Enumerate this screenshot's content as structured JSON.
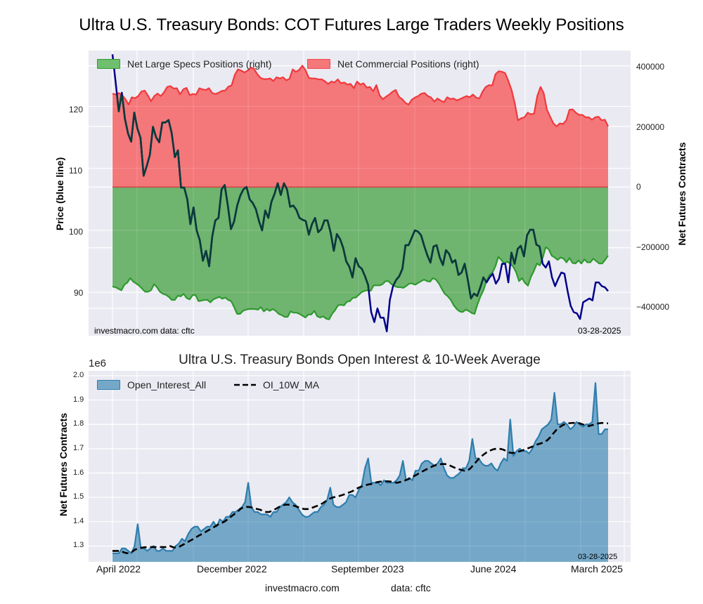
{
  "page": {
    "title": "Ultra U.S. Treasury Bonds: COT Futures Large Traders Weekly Positions",
    "footer_site": "investmacro.com",
    "footer_source": "data: cftc"
  },
  "chart_data": [
    {
      "type": "area",
      "title": "Ultra U.S. Treasury Bonds: COT Futures Large Traders Weekly Positions",
      "ylabel_left": "Price (blue line)",
      "ylabel_right": "Net Futures Contracts",
      "left_yticks": [
        "90",
        "100",
        "110",
        "120"
      ],
      "left_ytick_values": [
        90,
        100,
        110,
        120
      ],
      "right_yticks": [
        "400000",
        "200000",
        "0",
        "−200000",
        "−400000"
      ],
      "right_ytick_values": [
        400000,
        200000,
        0,
        -200000,
        -400000
      ],
      "left_ylim": [
        83,
        129
      ],
      "right_ylim": [
        -490000,
        450000
      ],
      "grid": true,
      "legend": {
        "position": "top-left",
        "entries": [
          "Net Large Specs Positions (right)",
          "Net Commercial Positions (right)"
        ]
      },
      "annotation_left": "investmacro.com    data: cftc",
      "annotation_right": "03-28-2025",
      "x_start": "2022-03",
      "x_end": "2025-03-28",
      "series": [
        {
          "name": "Net Commercial Positions (right)",
          "color": "#f0474a",
          "values": [
            308000,
            305000,
            310000,
            303000,
            290000,
            272000,
            296000,
            293000,
            300000,
            315000,
            318000,
            302000,
            283000,
            300000,
            308000,
            300000,
            312000,
            330000,
            333000,
            325000,
            326000,
            306000,
            322000,
            327000,
            303000,
            307000,
            305000,
            326000,
            322000,
            320000,
            326000,
            310000,
            307000,
            311000,
            317000,
            318000,
            331000,
            335000,
            370000,
            388000,
            384000,
            378000,
            384000,
            394000,
            390000,
            372000,
            360000,
            356000,
            356000,
            358000,
            350000,
            362000,
            358000,
            362000,
            352000,
            357000,
            388000,
            380000,
            386000,
            400000,
            385000,
            360000,
            358000,
            358000,
            355000,
            355000,
            349000,
            340000,
            348000,
            345000,
            355000,
            342000,
            345000,
            338000,
            340000,
            326000,
            348000,
            338000,
            342000,
            328000,
            330000,
            316000,
            336000,
            302000,
            290000,
            298000,
            305000,
            314000,
            320000,
            298000,
            290000,
            278000,
            272000,
            288000,
            295000,
            300000,
            308000,
            310000,
            300000,
            295000,
            282000,
            292000,
            285000,
            280000,
            296000,
            290000,
            292000,
            286000,
            290000,
            295000,
            300000,
            296000,
            305000,
            295000,
            292000,
            315000,
            330000,
            336000,
            335000,
            372000,
            382000,
            380000,
            376000,
            350000,
            320000,
            277000,
            220000,
            227000,
            230000,
            245000,
            240000,
            242000,
            300000,
            330000,
            310000,
            255000,
            232000,
            210000,
            200000,
            210000,
            208000,
            220000,
            255000,
            256000,
            245000,
            238000,
            238000,
            230000,
            230000,
            222000,
            230000,
            232000,
            220000,
            222000,
            200000
          ],
          "fill_to_zero": true
        },
        {
          "name": "Net Large Specs Positions (right)",
          "color": "#2e9a2e",
          "values": [
            -328000,
            -330000,
            -335000,
            -340000,
            -322000,
            -315000,
            -300000,
            -312000,
            -318000,
            -325000,
            -335000,
            -345000,
            -345000,
            -340000,
            -320000,
            -330000,
            -345000,
            -352000,
            -355000,
            -362000,
            -372000,
            -372000,
            -358000,
            -360000,
            -352000,
            -366000,
            -370000,
            -356000,
            -356000,
            -376000,
            -374000,
            -372000,
            -372000,
            -380000,
            -370000,
            -366000,
            -362000,
            -368000,
            -364000,
            -372000,
            -376000,
            -396000,
            -418000,
            -418000,
            -408000,
            -404000,
            -402000,
            -402000,
            -402000,
            -404000,
            -396000,
            -410000,
            -402000,
            -408000,
            -402000,
            -408000,
            -418000,
            -422000,
            -428000,
            -428000,
            -410000,
            -414000,
            -414000,
            -418000,
            -424000,
            -430000,
            -420000,
            -420000,
            -408000,
            -426000,
            -430000,
            -426000,
            -434000,
            -436000,
            -418000,
            -406000,
            -390000,
            -388000,
            -390000,
            -378000,
            -376000,
            -365000,
            -364000,
            -355000,
            -346000,
            -342000,
            -340000,
            -342000,
            -324000,
            -324000,
            -324000,
            -320000,
            -310000,
            -310000,
            -320000,
            -326000,
            -330000,
            -330000,
            -332000,
            -326000,
            -318000,
            -318000,
            -322000,
            -316000,
            -310000,
            -305000,
            -310000,
            -312000,
            -300000,
            -305000,
            -318000,
            -336000,
            -352000,
            -360000,
            -372000,
            -390000,
            -402000,
            -410000,
            -412000,
            -404000,
            -408000,
            -415000,
            -418000,
            -386000,
            -360000,
            -340000,
            -310000,
            -290000,
            -282000,
            -262000,
            -230000,
            -240000,
            -252000,
            -246000,
            -252000,
            -262000,
            -280000,
            -310000,
            -300000,
            -316000,
            -325000,
            -296000,
            -276000,
            -252000,
            -258000,
            -232000,
            -198000,
            -205000,
            -226000,
            -232000,
            -240000,
            -232000,
            -236000,
            -248000,
            -234000,
            -250000,
            -252000,
            -242000,
            -252000,
            -238000,
            -248000,
            -248000,
            -236000,
            -244000,
            -252000,
            -252000,
            -240000,
            -226000
          ],
          "fill_to_zero": true
        },
        {
          "name": "Price (blue line)",
          "color": "#00008b",
          "axis": "left",
          "values": [
            128.4,
            124.0,
            119.2,
            122.2,
            118.0,
            115.6,
            114.3,
            119.0,
            116.4,
            114.9,
            108.8,
            110.4,
            112.2,
            116.7,
            115.0,
            114.2,
            117.4,
            117.4,
            117.8,
            115.7,
            111.8,
            112.9,
            106.9,
            106.9,
            105.0,
            101.0,
            103.7,
            100.0,
            98.4,
            95.1,
            96.7,
            94.2,
            99.0,
            101.6,
            102.0,
            106.6,
            107.3,
            104.0,
            100.2,
            101.4,
            104.0,
            105.6,
            106.6,
            107.0,
            105.0,
            104.4,
            103.4,
            101.5,
            100.0,
            103.2,
            102.0,
            104.6,
            105.9,
            107.6,
            105.7,
            107.6,
            106.6,
            103.8,
            104.0,
            103.3,
            102.0,
            101.7,
            101.5,
            99.3,
            101.0,
            102.0,
            99.7,
            100.2,
            101.6,
            101.6,
            99.6,
            96.7,
            99.4,
            98.6,
            97.2,
            95.0,
            94.1,
            92.4,
            95.5,
            94.2,
            93.8,
            92.6,
            91.2,
            86.8,
            85.2,
            87.4,
            85.9,
            85.9,
            83.7,
            88.8,
            91.0,
            92.0,
            92.6,
            93.8,
            97.6,
            97.6,
            98.8,
            100.0,
            99.8,
            99.2,
            97.5,
            96.0,
            94.8,
            97.4,
            97.6,
            95.6,
            94.4,
            96.8,
            96.2,
            94.8,
            95.2,
            92.8,
            93.2,
            94.6,
            92.0,
            89.0,
            89.8,
            89.4,
            90.8,
            92.4,
            91.6,
            92.4,
            93.0,
            91.4,
            92.2,
            94.6,
            94.6,
            91.6,
            96.4,
            94.6,
            97.0,
            97.5,
            95.8,
            99.2,
            100.1,
            100.1,
            97.7,
            97.4,
            94.6,
            94.0,
            95.0,
            92.4,
            91.0,
            92.2,
            93.2,
            93.0,
            90.2,
            87.8,
            86.8,
            86.6,
            85.7,
            88.4,
            88.7,
            89.0,
            88.7,
            91.6,
            91.6,
            91.0,
            90.8,
            90.2
          ]
        }
      ]
    },
    {
      "type": "area",
      "title": "Ultra U.S. Treasury Bonds Open Interest & 10-Week Average",
      "ylabel": "Net Futures Contracts",
      "offset_text": "1e6",
      "yticks": [
        "1.3",
        "1.4",
        "1.5",
        "1.6",
        "1.7",
        "1.8",
        "1.9",
        "2.0"
      ],
      "ytick_values": [
        1.3,
        1.4,
        1.5,
        1.6,
        1.7,
        1.8,
        1.9,
        2.0
      ],
      "ylim": [
        1.235,
        2.02
      ],
      "xticks": [
        "April 2022",
        "December 2022",
        "September 2023",
        "June 2024",
        "March 2025"
      ],
      "grid": true,
      "legend": {
        "position": "top-left",
        "entries": [
          "Open_Interest_All",
          "OI_10W_MA"
        ]
      },
      "annotation_right": "03-28-2025",
      "series": [
        {
          "name": "Open_Interest_All",
          "color": "#2e7eae",
          "values": [
            1.27,
            1.27,
            1.27,
            1.29,
            1.29,
            1.28,
            1.27,
            1.3,
            1.39,
            1.29,
            1.29,
            1.28,
            1.29,
            1.3,
            1.28,
            1.28,
            1.29,
            1.28,
            1.28,
            1.28,
            1.3,
            1.31,
            1.33,
            1.32,
            1.35,
            1.37,
            1.38,
            1.38,
            1.36,
            1.37,
            1.38,
            1.38,
            1.4,
            1.38,
            1.41,
            1.4,
            1.42,
            1.42,
            1.44,
            1.44,
            1.45,
            1.46,
            1.48,
            1.56,
            1.46,
            1.44,
            1.44,
            1.43,
            1.43,
            1.43,
            1.42,
            1.44,
            1.44,
            1.46,
            1.47,
            1.48,
            1.5,
            1.48,
            1.47,
            1.45,
            1.43,
            1.42,
            1.42,
            1.43,
            1.44,
            1.44,
            1.46,
            1.47,
            1.49,
            1.54,
            1.47,
            1.46,
            1.46,
            1.47,
            1.48,
            1.51,
            1.51,
            1.5,
            1.53,
            1.55,
            1.62,
            1.66,
            1.56,
            1.56,
            1.56,
            1.55,
            1.57,
            1.56,
            1.56,
            1.56,
            1.57,
            1.59,
            1.65,
            1.57,
            1.58,
            1.57,
            1.61,
            1.61,
            1.64,
            1.65,
            1.65,
            1.64,
            1.63,
            1.64,
            1.66,
            1.62,
            1.59,
            1.58,
            1.58,
            1.59,
            1.6,
            1.62,
            1.62,
            1.65,
            1.74,
            1.66,
            1.66,
            1.64,
            1.63,
            1.63,
            1.64,
            1.62,
            1.61,
            1.64,
            1.66,
            1.65,
            1.82,
            1.67,
            1.69,
            1.7,
            1.69,
            1.69,
            1.68,
            1.7,
            1.73,
            1.75,
            1.78,
            1.79,
            1.8,
            1.82,
            1.93,
            1.8,
            1.8,
            1.81,
            1.8,
            1.78,
            1.79,
            1.81,
            1.8,
            1.79,
            1.8,
            1.8,
            1.81,
            1.97,
            1.76,
            1.76,
            1.78,
            1.78
          ]
        },
        {
          "name": "OI_10W_MA",
          "color": "#000000",
          "style": "dashed",
          "values": [
            1.28,
            1.28,
            1.28,
            1.277,
            1.272,
            1.27,
            1.275,
            1.285,
            1.29,
            1.293,
            1.295,
            1.295,
            1.296,
            1.296,
            1.296,
            1.296,
            1.296,
            1.296,
            1.3,
            1.295,
            1.293,
            1.298,
            1.305,
            1.312,
            1.32,
            1.327,
            1.335,
            1.343,
            1.35,
            1.357,
            1.365,
            1.372,
            1.38,
            1.388,
            1.394,
            1.4,
            1.41,
            1.42,
            1.43,
            1.44,
            1.452,
            1.46,
            1.461,
            1.46,
            1.457,
            1.453,
            1.45,
            1.445,
            1.44,
            1.44,
            1.445,
            1.452,
            1.46,
            1.465,
            1.47,
            1.47,
            1.468,
            1.465,
            1.46,
            1.455,
            1.452,
            1.452,
            1.455,
            1.46,
            1.465,
            1.47,
            1.478,
            1.487,
            1.495,
            1.5,
            1.503,
            1.506,
            1.51,
            1.515,
            1.52,
            1.525,
            1.533,
            1.54,
            1.545,
            1.55,
            1.553,
            1.555,
            1.56,
            1.563,
            1.565,
            1.566,
            1.566,
            1.565,
            1.562,
            1.56,
            1.563,
            1.567,
            1.572,
            1.578,
            1.585,
            1.592,
            1.6,
            1.607,
            1.614,
            1.62,
            1.627,
            1.632,
            1.635,
            1.637,
            1.637,
            1.634,
            1.628,
            1.622,
            1.617,
            1.613,
            1.61,
            1.61,
            1.62,
            1.635,
            1.65,
            1.665,
            1.675,
            1.685,
            1.692,
            1.697,
            1.7,
            1.7,
            1.697,
            1.692,
            1.685,
            1.682,
            1.684,
            1.688,
            1.692,
            1.697,
            1.702,
            1.707,
            1.712,
            1.718,
            1.722,
            1.727,
            1.735,
            1.748,
            1.765,
            1.78,
            1.79,
            1.798,
            1.803,
            1.805,
            1.806,
            1.806,
            1.805,
            1.8,
            1.796,
            1.793,
            1.797,
            1.8,
            1.804,
            1.806,
            1.805,
            1.804
          ]
        }
      ]
    }
  ]
}
